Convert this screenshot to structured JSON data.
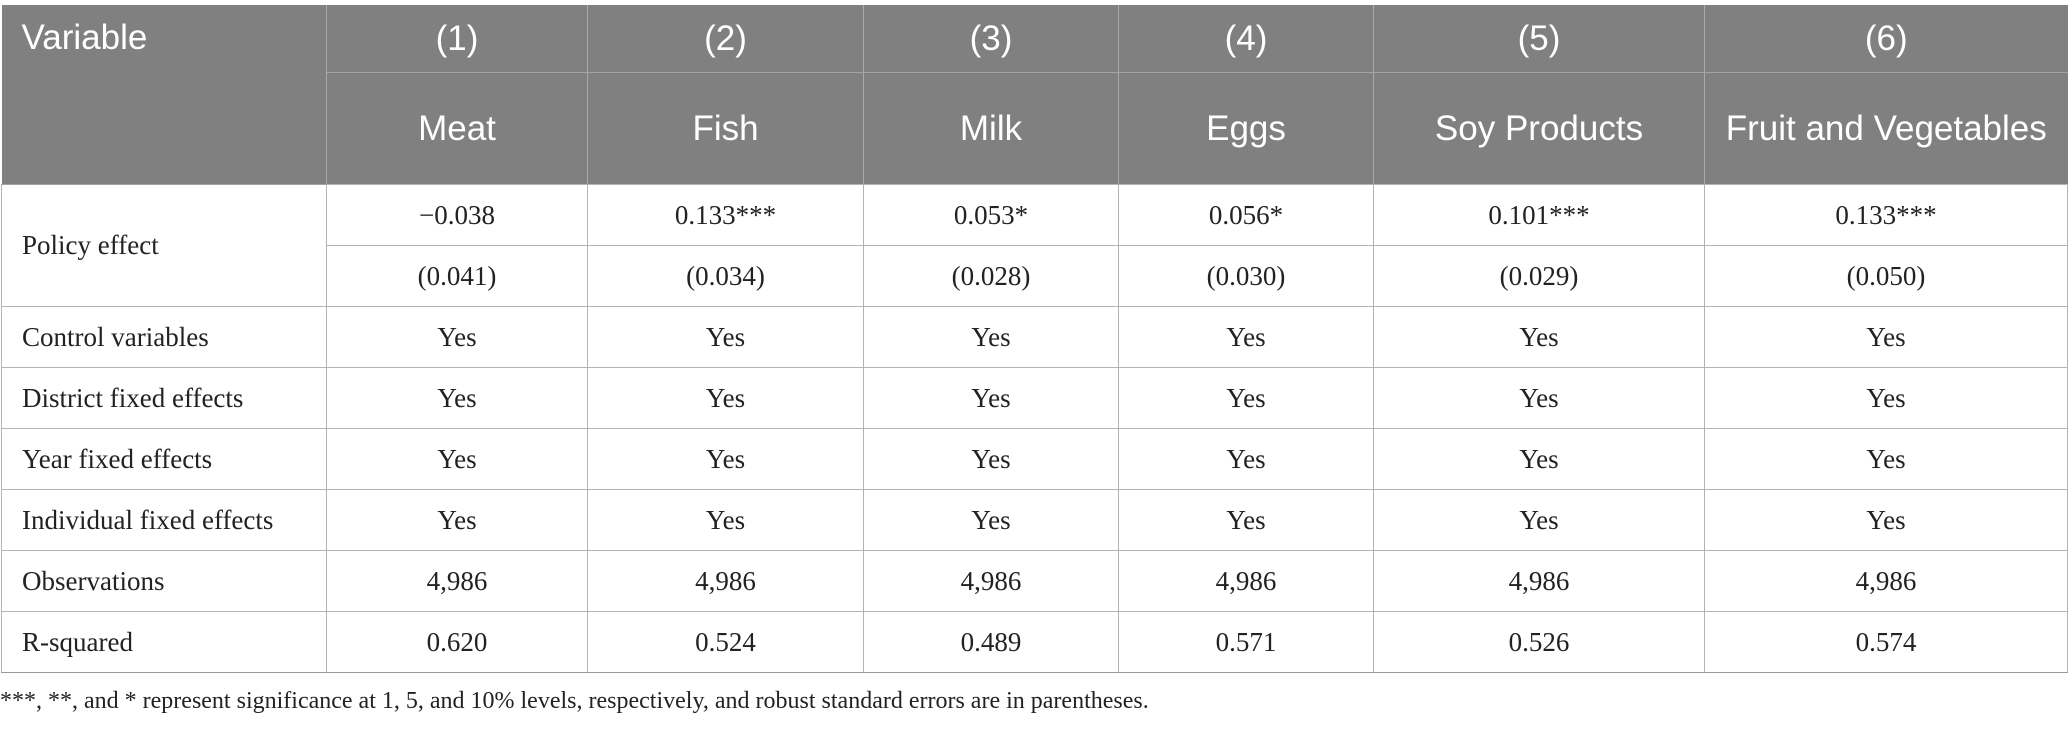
{
  "table": {
    "header_label": "Variable",
    "columns": [
      {
        "number": "(1)",
        "name": "Meat"
      },
      {
        "number": "(2)",
        "name": "Fish"
      },
      {
        "number": "(3)",
        "name": "Milk"
      },
      {
        "number": "(4)",
        "name": "Eggs"
      },
      {
        "number": "(5)",
        "name": "Soy Products"
      },
      {
        "number": "(6)",
        "name": "Fruit and Vegetables"
      }
    ],
    "policy_effect": {
      "label": "Policy effect",
      "coefficients": [
        "−0.038",
        "0.133***",
        "0.053*",
        "0.056*",
        "0.101***",
        "0.133***"
      ],
      "standard_errors": [
        "(0.041)",
        "(0.034)",
        "(0.028)",
        "(0.030)",
        "(0.029)",
        "(0.050)"
      ]
    },
    "rows": [
      {
        "label": "Control variables",
        "values": [
          "Yes",
          "Yes",
          "Yes",
          "Yes",
          "Yes",
          "Yes"
        ]
      },
      {
        "label": "District fixed effects",
        "values": [
          "Yes",
          "Yes",
          "Yes",
          "Yes",
          "Yes",
          "Yes"
        ]
      },
      {
        "label": "Year fixed effects",
        "values": [
          "Yes",
          "Yes",
          "Yes",
          "Yes",
          "Yes",
          "Yes"
        ]
      },
      {
        "label": "Individual fixed effects",
        "values": [
          "Yes",
          "Yes",
          "Yes",
          "Yes",
          "Yes",
          "Yes"
        ]
      },
      {
        "label": "Observations",
        "values": [
          "4,986",
          "4,986",
          "4,986",
          "4,986",
          "4,986",
          "4,986"
        ]
      },
      {
        "label": "R-squared",
        "values": [
          "0.620",
          "0.524",
          "0.489",
          "0.571",
          "0.526",
          "0.574"
        ]
      }
    ]
  },
  "footnote": "***, **, and * represent significance at 1, 5, and 10% levels, respectively, and robust standard errors are in parentheses.",
  "colors": {
    "header_background": "#808080",
    "header_text": "#ffffff",
    "grid_line": "#b3b3b3"
  }
}
